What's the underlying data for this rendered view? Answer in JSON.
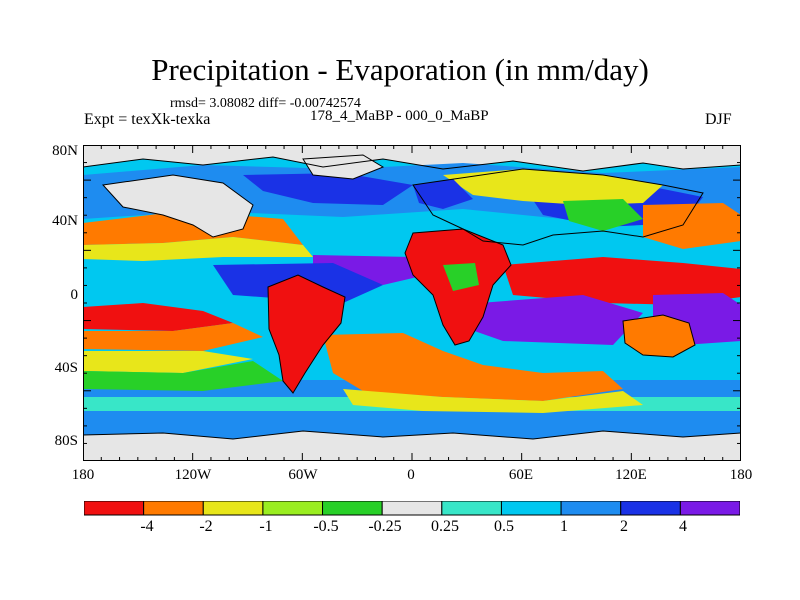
{
  "title": "Precipitation - Evaporation (in mm/day)",
  "stats": "rmsd= 3.08082 diff= -0.00742574",
  "expt": "Expt = texXk-texka",
  "comparison": "178_4_MaBP - 000_0_MaBP",
  "season": "DJF",
  "map": {
    "x_ticks": [
      "180",
      "120W",
      "60W",
      "0",
      "60E",
      "120E",
      "180"
    ],
    "y_ticks": [
      "80N",
      "40N",
      "0",
      "40S",
      "80S"
    ],
    "colors": {
      "c_lt_m4": "#f01010",
      "c_m4_m2": "#ff7a00",
      "c_m2_m1": "#e8e61a",
      "c_m1_m05": "#9aee20",
      "c_m05_m025": "#28d028",
      "c_m025_025": "#e6e6e6",
      "c_025_05": "#38e6c8",
      "c_05_1": "#00c8f0",
      "c_1_2": "#1e8cf0",
      "c_2_4": "#1a32e6",
      "c_gt_4": "#7a1ae6"
    }
  },
  "colorbar": {
    "labels": [
      "-4",
      "-2",
      "-1",
      "-0.5",
      "-0.25",
      "0.25",
      "0.5",
      "1",
      "2",
      "4"
    ],
    "colors": [
      "#f01010",
      "#ff7a00",
      "#e8e61a",
      "#9aee20",
      "#28d028",
      "#e6e6e6",
      "#38e6c8",
      "#00c8f0",
      "#1e8cf0",
      "#1a32e6",
      "#7a1ae6"
    ]
  }
}
